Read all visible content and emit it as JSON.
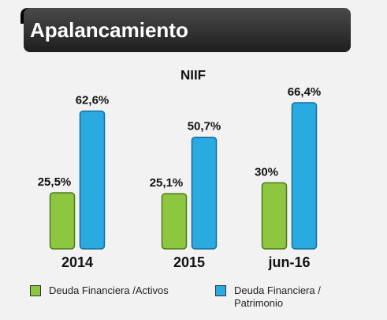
{
  "header": {
    "title": "Apalancamiento"
  },
  "chart_data": {
    "type": "bar",
    "title": "NIIF",
    "categories": [
      "2014",
      "2015",
      "jun-16"
    ],
    "series": [
      {
        "name": "Deuda Financiera /Activos",
        "color": "#8dc63f",
        "values": [
          25.5,
          25.1,
          30
        ],
        "value_labels": [
          "25,5%",
          "25,1%",
          "30%"
        ]
      },
      {
        "name": "Deuda Financiera / Patrimonio",
        "color": "#29abe2",
        "values": [
          62.6,
          50.7,
          66.4
        ],
        "value_labels": [
          "62,6%",
          "50,7%",
          "66,4%"
        ]
      }
    ],
    "legend": "bottom"
  }
}
